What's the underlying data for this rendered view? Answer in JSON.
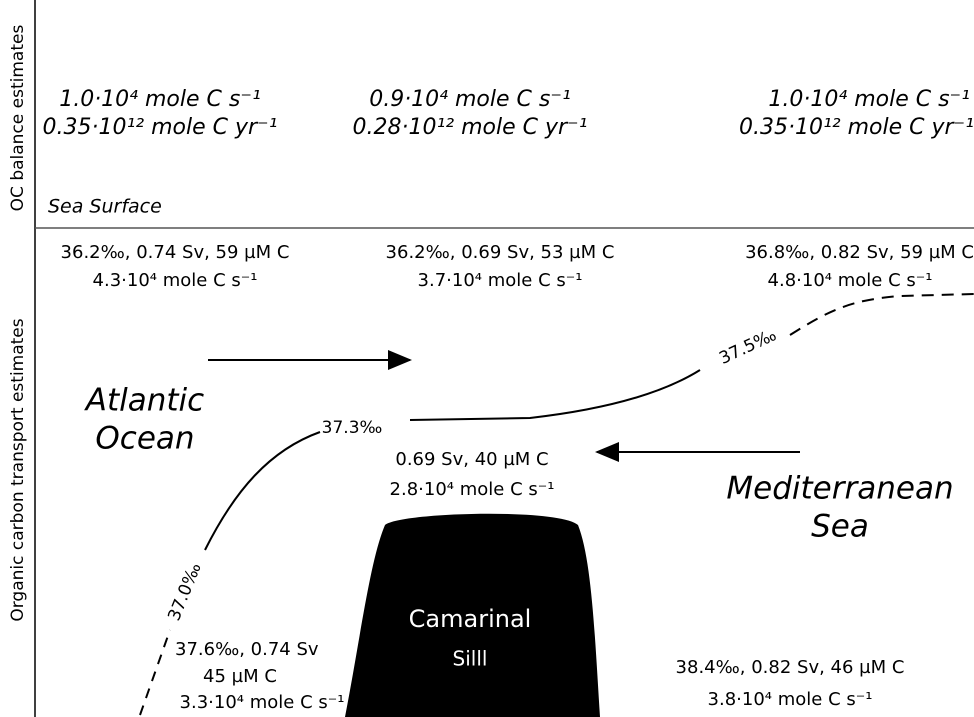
{
  "axis_labels": {
    "upper": "OC balance estimates",
    "lower": "Organic carbon transport estimates"
  },
  "balance": [
    {
      "line1": "1.0·10⁴ mole C s⁻¹",
      "line2": "0.35·10¹² mole C yr⁻¹"
    },
    {
      "line1": "0.9·10⁴ mole C s⁻¹",
      "line2": "0.28·10¹² mole C yr⁻¹"
    },
    {
      "line1": "1.0·10⁴ mole C s⁻¹",
      "line2": "0.35·10¹² mole C yr⁻¹"
    }
  ],
  "sea_surface": "Sea Surface",
  "surface_flows": [
    {
      "line1": "36.2‰, 0.74 Sv, 59 µM C",
      "line2": "4.3·10⁴ mole C s⁻¹"
    },
    {
      "line1": "36.2‰, 0.69 Sv, 53  µM C",
      "line2": "3.7·10⁴ mole C s⁻¹"
    },
    {
      "line1": "36.8‰, 0.82 Sv, 59  µM C",
      "line2": "4.8·10⁴ mole C s⁻¹"
    }
  ],
  "regions": {
    "atlantic": [
      "Atlantic",
      "Ocean"
    ],
    "mediterranean": [
      "Mediterranean",
      "Sea"
    ],
    "sill": [
      "Camarinal",
      "Silll"
    ]
  },
  "isohalines": [
    "37.0‰",
    "37.3‰",
    "37.5‰"
  ],
  "outflow": {
    "line1": "0.69 Sv, 40 µM C",
    "line2": "2.8·10⁴ mole C s⁻¹"
  },
  "deep_left": {
    "line1": "37.6‰, 0.74 Sv",
    "line2": "45 µM C",
    "line3": "3.3·10⁴ mole C s⁻¹"
  },
  "deep_right": {
    "line1": "38.4‰, 0.82 Sv, 46  µM C",
    "line2": "3.8·10⁴ mole C s⁻¹"
  }
}
